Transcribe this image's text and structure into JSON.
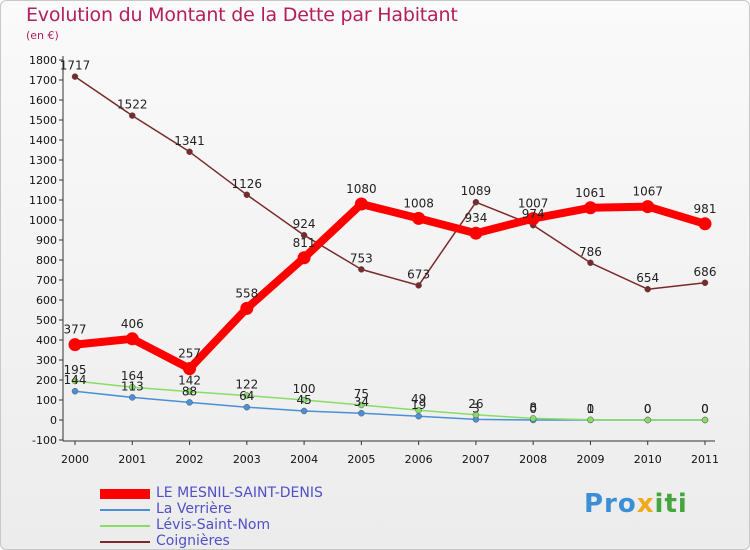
{
  "title": "Evolution du Montant de la Dette par Habitant",
  "unit": "(en €)",
  "logo_text": "Proxiti",
  "chart_data": {
    "type": "line",
    "title": "Evolution du Montant de la Dette par Habitant",
    "subtitle": "(en €)",
    "x": [
      "2000",
      "2001",
      "2002",
      "2003",
      "2004",
      "2005",
      "2006",
      "2007",
      "2008",
      "2009",
      "2010",
      "2011"
    ],
    "ylim": [
      -100,
      1800
    ],
    "yticks": [
      -100,
      0,
      100,
      200,
      300,
      400,
      500,
      600,
      700,
      800,
      900,
      1000,
      1100,
      1200,
      1300,
      1400,
      1500,
      1600,
      1700,
      1800
    ],
    "grid": false,
    "legend_position": "bottom-left",
    "series": [
      {
        "name": "LE MESNIL-SAINT-DENIS",
        "color": "#ff0000",
        "values": [
          377,
          406,
          257,
          558,
          811,
          1080,
          1008,
          934,
          1007,
          1061,
          1067,
          981
        ],
        "labels": [
          "377",
          "406",
          "257",
          "558",
          "811",
          "1080",
          "1008",
          "934",
          "1007",
          "1061",
          "1067",
          "981"
        ]
      },
      {
        "name": "La Verrière",
        "color": "#4a90d9",
        "values": [
          144,
          113,
          88,
          64,
          45,
          34,
          19,
          3,
          0,
          0,
          0,
          0
        ],
        "labels": [
          "144",
          "113",
          "88",
          "64",
          "45",
          "34",
          "19",
          "3",
          "0",
          "0",
          "0",
          "0"
        ]
      },
      {
        "name": "Lévis-Saint-Nom",
        "color": "#88dd66",
        "values": [
          195,
          164,
          142,
          122,
          100,
          75,
          49,
          26,
          8,
          1,
          0,
          0
        ],
        "labels": [
          "195",
          "164",
          "142",
          "122",
          "100",
          "75",
          "49",
          "26",
          "8",
          "1",
          "0",
          "0"
        ]
      },
      {
        "name": "Coignières",
        "color": "#7a2a2a",
        "values": [
          1717,
          1522,
          1341,
          1126,
          924,
          753,
          673,
          1089,
          974,
          786,
          654,
          686
        ],
        "labels": [
          "1717",
          "1522",
          "1341",
          "1126",
          "924",
          "753",
          "673",
          "1089",
          "974",
          "786",
          "654",
          "686"
        ]
      }
    ]
  }
}
